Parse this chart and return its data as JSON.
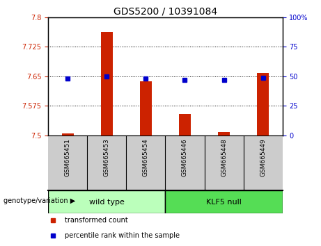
{
  "title": "GDS5200 / 10391084",
  "samples": [
    "GSM665451",
    "GSM665453",
    "GSM665454",
    "GSM665446",
    "GSM665448",
    "GSM665449"
  ],
  "group_labels": [
    "wild type",
    "KLF5 null"
  ],
  "wildtype_indices": [
    0,
    1,
    2
  ],
  "klf5null_indices": [
    3,
    4,
    5
  ],
  "transformed_counts": [
    7.505,
    7.762,
    7.638,
    7.555,
    7.508,
    7.658
  ],
  "percentile_ranks": [
    48,
    50,
    48,
    47,
    47,
    49
  ],
  "ylim_left": [
    7.5,
    7.8
  ],
  "ylim_right": [
    0,
    100
  ],
  "yticks_left": [
    7.5,
    7.575,
    7.65,
    7.725,
    7.8
  ],
  "yticks_right": [
    0,
    25,
    50,
    75,
    100
  ],
  "ytick_labels_left": [
    "7.5",
    "7.575",
    "7.65",
    "7.725",
    "7.8"
  ],
  "ytick_labels_right": [
    "0",
    "25",
    "50",
    "75",
    "100%"
  ],
  "bar_color": "#cc2200",
  "dot_color": "#0000cc",
  "wildtype_color": "#bbffbb",
  "klf5null_color": "#55dd55",
  "label_bg_color": "#cccccc",
  "legend_red_label": "transformed count",
  "legend_blue_label": "percentile rank within the sample",
  "genotype_label": "genotype/variation",
  "left_tick_color": "#cc2200",
  "right_tick_color": "#0000cc",
  "bar_width": 0.3,
  "title_fontsize": 10,
  "tick_fontsize": 7,
  "sample_fontsize": 6.5,
  "group_fontsize": 8,
  "legend_fontsize": 7
}
